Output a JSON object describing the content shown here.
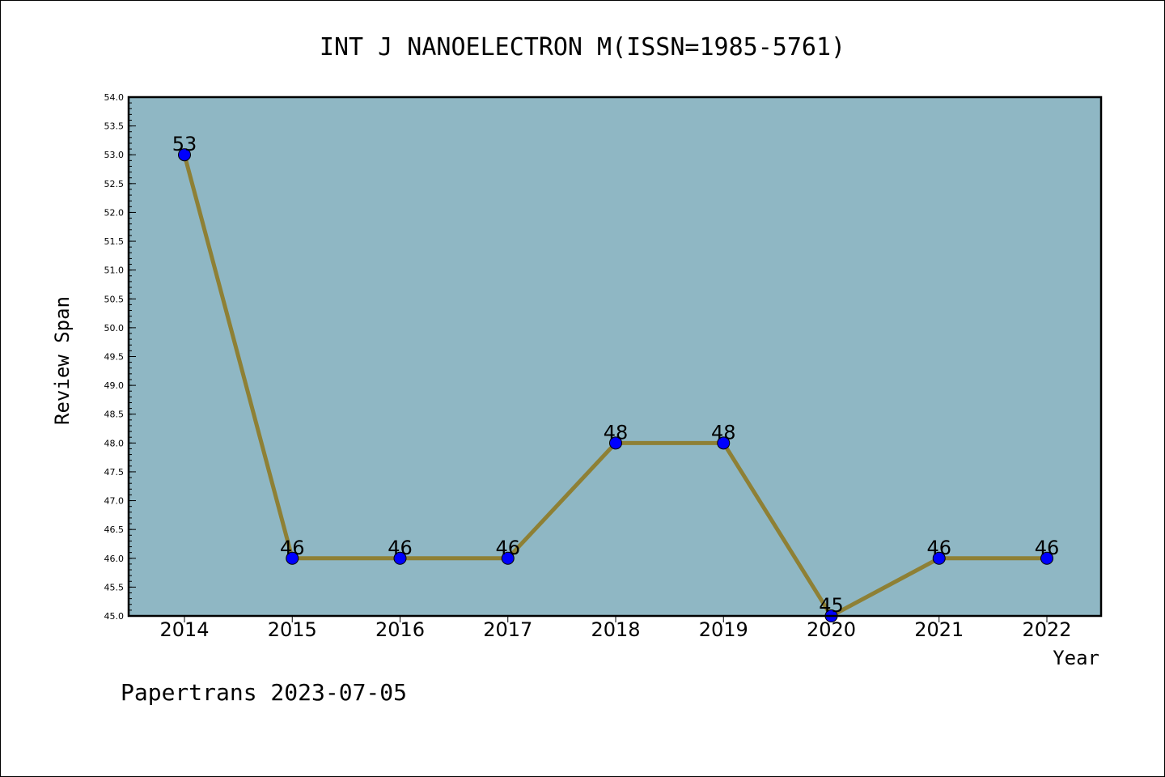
{
  "chart_data": {
    "type": "line",
    "title": "INT J NANOELECTRON M(ISSN=1985-5761)",
    "xlabel": "Year",
    "ylabel": "Review Span",
    "categories": [
      "2014",
      "2015",
      "2016",
      "2017",
      "2018",
      "2019",
      "2020",
      "2021",
      "2022"
    ],
    "series": [
      {
        "values": [
          53,
          46,
          46,
          46,
          48,
          48,
          45,
          46,
          46
        ]
      }
    ],
    "data_labels": [
      "53",
      "46",
      "46",
      "46",
      "48",
      "48",
      "45",
      "46",
      "46"
    ],
    "ylim": [
      45.0,
      54.0
    ],
    "yticks": [
      "45.0",
      "45.5",
      "46.0",
      "46.5",
      "47.0",
      "47.5",
      "48.0",
      "48.5",
      "49.0",
      "49.5",
      "50.0",
      "50.5",
      "51.0",
      "51.5",
      "52.0",
      "52.5",
      "53.0",
      "53.5",
      "54.0"
    ],
    "grid": false,
    "legend": "none",
    "colors": {
      "plot_background": "#8fb7c4",
      "line": "#8e8035",
      "marker": "#0000ff"
    },
    "footer": "Papertrans 2023-07-05"
  }
}
